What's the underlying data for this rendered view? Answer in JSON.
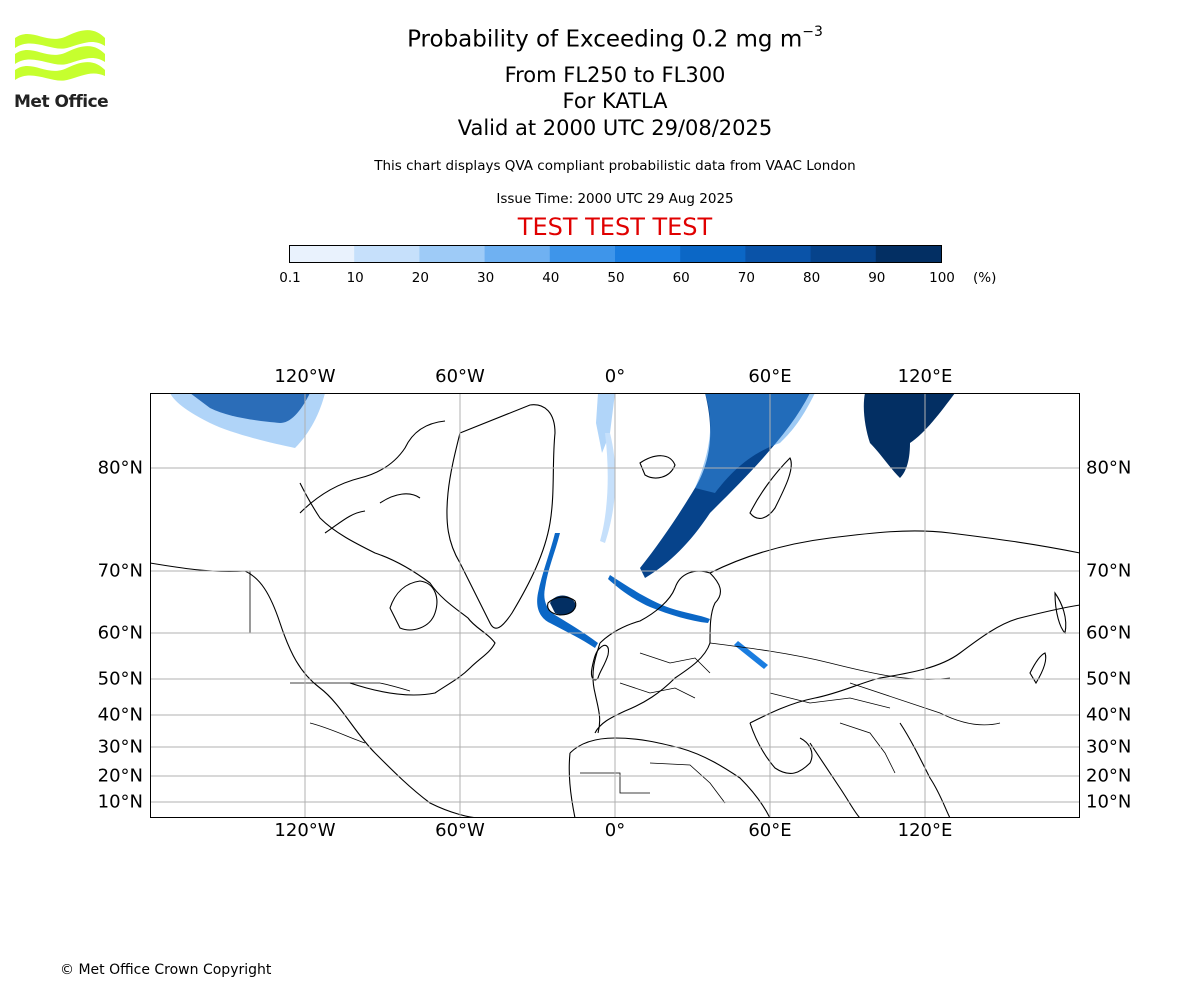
{
  "logo": {
    "text": "Met Office",
    "color": "#c6ff2e"
  },
  "header": {
    "title_main": "Probability of Exceeding 0.2 mg m",
    "title_exp": "−3",
    "line2": "From FL250 to FL300",
    "line3": "For KATLA",
    "line4": "Valid at 2000 UTC 29/08/2025",
    "note": "This chart displays QVA compliant probabilistic data from VAAC London",
    "issue_time": "Issue Time: 2000 UTC 29 Aug 2025",
    "test_banner": "TEST TEST TEST",
    "test_color": "#e00000"
  },
  "colorbar": {
    "ticks": [
      "0.1",
      "10",
      "20",
      "30",
      "40",
      "50",
      "60",
      "70",
      "80",
      "90",
      "100"
    ],
    "unit": "(%)",
    "colors": [
      "#e9f2fd",
      "#c6e0fb",
      "#9ecbf7",
      "#6fb1f2",
      "#3e95ea",
      "#1a7de0",
      "#0b67c6",
      "#0a53a8",
      "#06438b",
      "#032f63"
    ]
  },
  "map": {
    "projection": "cylindrical",
    "lon_labels": [
      "120°W",
      "60°W",
      "0°",
      "60°E",
      "120°E"
    ],
    "lat_labels": [
      "80°N",
      "70°N",
      "60°N",
      "50°N",
      "40°N",
      "30°N",
      "20°N",
      "10°N"
    ],
    "grid": true
  },
  "footer": {
    "copyright": "© Met Office Crown Copyright"
  }
}
